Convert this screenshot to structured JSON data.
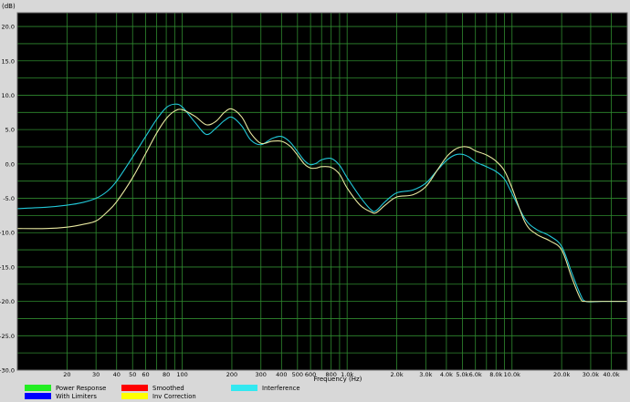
{
  "chart_data": {
    "type": "line",
    "title": "",
    "xlabel": "Frequency (Hz)",
    "ylabel": "(dB)",
    "xscale": "log",
    "xlim": [
      10,
      50000
    ],
    "ylim": [
      -30,
      22
    ],
    "grid": true,
    "y_ticks": [
      "20.0",
      "15.0",
      "10.0",
      "5.0",
      "0.0",
      "-5.0",
      "-10.0",
      "-15.0",
      "-20.0",
      "-25.0",
      "-30.0"
    ],
    "x_ticks": [
      {
        "value": 20,
        "label": "20"
      },
      {
        "value": 30,
        "label": "30"
      },
      {
        "value": 40,
        "label": "40"
      },
      {
        "value": 50,
        "label": "50"
      },
      {
        "value": 60,
        "label": "60"
      },
      {
        "value": 80,
        "label": "80"
      },
      {
        "value": 100,
        "label": "100"
      },
      {
        "value": 200,
        "label": "200"
      },
      {
        "value": 300,
        "label": "300"
      },
      {
        "value": 400,
        "label": "400"
      },
      {
        "value": 500,
        "label": "500"
      },
      {
        "value": 600,
        "label": "600"
      },
      {
        "value": 800,
        "label": "800"
      },
      {
        "value": 1000,
        "label": "1.0k"
      },
      {
        "value": 2000,
        "label": "2.0k"
      },
      {
        "value": 3000,
        "label": "3.0k"
      },
      {
        "value": 4000,
        "label": "4.0k"
      },
      {
        "value": 5000,
        "label": "5.0k"
      },
      {
        "value": 6000,
        "label": "6.0k"
      },
      {
        "value": 8000,
        "label": "8.0k"
      },
      {
        "value": 10000,
        "label": "10.0k"
      },
      {
        "value": 20000,
        "label": "20.0k"
      },
      {
        "value": 30000,
        "label": "30.0k"
      },
      {
        "value": 40000,
        "label": "40.0k"
      }
    ],
    "series": [
      {
        "name": "Interference",
        "color": "#22c8d8",
        "points": [
          [
            10,
            -6.5
          ],
          [
            15,
            -6.3
          ],
          [
            20,
            -6.0
          ],
          [
            25,
            -5.6
          ],
          [
            30,
            -5.0
          ],
          [
            35,
            -4.0
          ],
          [
            40,
            -2.5
          ],
          [
            50,
            1.0
          ],
          [
            60,
            4.0
          ],
          [
            70,
            6.5
          ],
          [
            80,
            8.2
          ],
          [
            90,
            8.7
          ],
          [
            100,
            8.3
          ],
          [
            120,
            6.0
          ],
          [
            140,
            4.3
          ],
          [
            160,
            5.2
          ],
          [
            180,
            6.3
          ],
          [
            200,
            6.8
          ],
          [
            230,
            5.5
          ],
          [
            260,
            3.5
          ],
          [
            300,
            2.8
          ],
          [
            350,
            3.7
          ],
          [
            400,
            4.0
          ],
          [
            450,
            3.2
          ],
          [
            500,
            1.8
          ],
          [
            550,
            0.5
          ],
          [
            600,
            -0.1
          ],
          [
            650,
            0.1
          ],
          [
            700,
            0.6
          ],
          [
            800,
            0.8
          ],
          [
            900,
            -0.2
          ],
          [
            1000,
            -2.0
          ],
          [
            1200,
            -4.8
          ],
          [
            1400,
            -6.7
          ],
          [
            1500,
            -6.8
          ],
          [
            1700,
            -5.5
          ],
          [
            2000,
            -4.2
          ],
          [
            2500,
            -3.8
          ],
          [
            3000,
            -2.8
          ],
          [
            3500,
            -1.0
          ],
          [
            4000,
            0.5
          ],
          [
            4500,
            1.3
          ],
          [
            5000,
            1.4
          ],
          [
            5500,
            1.0
          ],
          [
            6000,
            0.3
          ],
          [
            7000,
            -0.4
          ],
          [
            8000,
            -1.1
          ],
          [
            9000,
            -2.2
          ],
          [
            10000,
            -4.3
          ],
          [
            12000,
            -8.0
          ],
          [
            14000,
            -9.5
          ],
          [
            17000,
            -10.5
          ],
          [
            20000,
            -12.0
          ],
          [
            23000,
            -15.8
          ],
          [
            26000,
            -19.0
          ],
          [
            28000,
            -20.0
          ],
          [
            35000,
            -20.0
          ],
          [
            50000,
            -20.0
          ]
        ]
      },
      {
        "name": "Inv Correction",
        "color": "#e8e8a0",
        "points": [
          [
            10,
            -9.4
          ],
          [
            15,
            -9.4
          ],
          [
            20,
            -9.2
          ],
          [
            25,
            -8.8
          ],
          [
            30,
            -8.3
          ],
          [
            35,
            -7.0
          ],
          [
            40,
            -5.5
          ],
          [
            50,
            -2.0
          ],
          [
            60,
            1.5
          ],
          [
            70,
            4.5
          ],
          [
            80,
            6.6
          ],
          [
            90,
            7.7
          ],
          [
            100,
            7.9
          ],
          [
            120,
            6.9
          ],
          [
            140,
            5.7
          ],
          [
            160,
            6.2
          ],
          [
            180,
            7.5
          ],
          [
            200,
            8.0
          ],
          [
            230,
            6.8
          ],
          [
            260,
            4.5
          ],
          [
            300,
            3.0
          ],
          [
            350,
            3.3
          ],
          [
            400,
            3.3
          ],
          [
            450,
            2.6
          ],
          [
            500,
            1.3
          ],
          [
            550,
            0.0
          ],
          [
            600,
            -0.6
          ],
          [
            650,
            -0.6
          ],
          [
            700,
            -0.4
          ],
          [
            800,
            -0.5
          ],
          [
            900,
            -1.5
          ],
          [
            1000,
            -3.5
          ],
          [
            1200,
            -6.0
          ],
          [
            1400,
            -7.0
          ],
          [
            1500,
            -7.1
          ],
          [
            1700,
            -6.0
          ],
          [
            2000,
            -4.8
          ],
          [
            2500,
            -4.5
          ],
          [
            3000,
            -3.3
          ],
          [
            3500,
            -1.0
          ],
          [
            4000,
            1.0
          ],
          [
            4500,
            2.1
          ],
          [
            5000,
            2.5
          ],
          [
            5500,
            2.4
          ],
          [
            6000,
            1.9
          ],
          [
            7000,
            1.3
          ],
          [
            8000,
            0.4
          ],
          [
            9000,
            -1.0
          ],
          [
            10000,
            -3.5
          ],
          [
            12000,
            -8.5
          ],
          [
            14000,
            -10.2
          ],
          [
            17000,
            -11.2
          ],
          [
            20000,
            -12.5
          ],
          [
            23000,
            -16.5
          ],
          [
            26000,
            -19.6
          ],
          [
            28000,
            -20.0
          ],
          [
            35000,
            -20.0
          ],
          [
            50000,
            -20.0
          ]
        ]
      }
    ],
    "legend": [
      {
        "label": "Power Response",
        "color": "#22ee22"
      },
      {
        "label": "With Limiters",
        "color": "#0000ff"
      },
      {
        "label": "Smoothed",
        "color": "#ff0000"
      },
      {
        "label": "Inv Correction",
        "color": "#ffff00"
      },
      {
        "label": "Interference",
        "color": "#33e8f0"
      }
    ]
  }
}
